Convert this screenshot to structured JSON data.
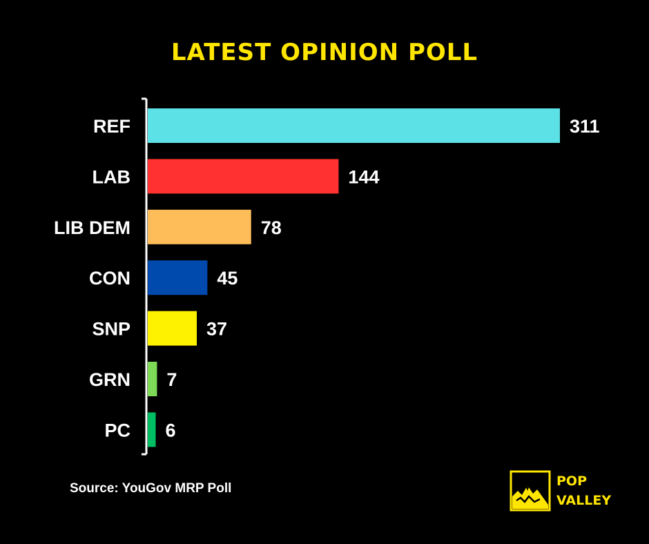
{
  "title": "LATEST OPINION POLL",
  "source": "Source: YouGov MRP Poll",
  "brand": {
    "line1": "POP",
    "line2": "VALLEY",
    "icon": "mountain-icon",
    "color": "#FFE600"
  },
  "chart_data": {
    "type": "bar",
    "orientation": "horizontal",
    "title": "LATEST OPINION POLL",
    "categories": [
      "REF",
      "LAB",
      "LIB DEM",
      "CON",
      "SNP",
      "GRN",
      "PC"
    ],
    "values": [
      311,
      144,
      78,
      45,
      37,
      7,
      6
    ],
    "colors": [
      "#5CE1E6",
      "#FF3131",
      "#FFBD59",
      "#004AAD",
      "#FFF200",
      "#7ED957",
      "#00BF63"
    ],
    "xlim": [
      0,
      311
    ],
    "grid": false,
    "legend": "none",
    "data_labels": true
  }
}
